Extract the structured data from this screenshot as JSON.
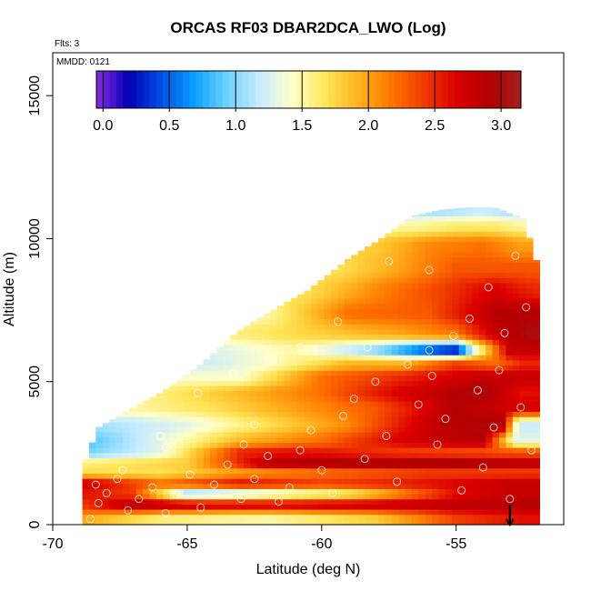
{
  "chart_data": {
    "type": "heatmap",
    "title": "ORCAS RF03 DBAR2DCA_LWO (Log)",
    "flights_label": "Flts: 3",
    "date_label": "MMDD: 0121",
    "xlabel": "Latitude (deg N)",
    "ylabel": "Altitude (m)",
    "xlim": [
      -70,
      -51
    ],
    "ylim": [
      0,
      16500
    ],
    "x_ticks": [
      -70,
      -65,
      -60,
      -55
    ],
    "x_tick_labels": [
      "-70",
      "-65",
      "-60",
      "-55"
    ],
    "y_ticks": [
      0,
      5000,
      10000,
      15000
    ],
    "y_tick_labels": [
      "0",
      "5000",
      "10000",
      "15000"
    ],
    "colorbar": {
      "range": [
        -0.05,
        3.15
      ],
      "ticks": [
        0.0,
        0.5,
        1.0,
        1.5,
        2.0,
        2.5,
        3.0
      ],
      "tick_labels": [
        "0.0",
        "0.5",
        "1.0",
        "1.5",
        "2.0",
        "2.5",
        "3.0"
      ],
      "colors": [
        "#8a2be2",
        "#0000b4",
        "#0050e6",
        "#0aa0ff",
        "#6ed2ff",
        "#c8ecff",
        "#ffffc8",
        "#ffe65a",
        "#ffb41e",
        "#ff7800",
        "#f03c00",
        "#dc0000",
        "#b40000",
        "#a02020"
      ]
    },
    "domain_edge": {
      "lat": [
        -68.9,
        -68.3,
        -67.2,
        -66.0,
        -64.5,
        -63.2,
        -62.0,
        -60.5,
        -59.0,
        -57.8,
        -56.6,
        -55.6,
        -54.6,
        -53.6,
        -52.5,
        -52.1,
        -51.8
      ],
      "top_altitude": [
        2000,
        3400,
        4000,
        4600,
        5600,
        6700,
        7400,
        8200,
        9300,
        10000,
        10800,
        11000,
        11100,
        11100,
        10700,
        9500,
        8500
      ]
    },
    "bands": [
      {
        "altitude": 250,
        "values": [
          [
            -69,
            2.0
          ],
          [
            -66,
            1.6
          ],
          [
            -62,
            1.5
          ],
          [
            -58,
            1.8
          ],
          [
            -55,
            2.4
          ],
          [
            -52.5,
            2.6
          ]
        ]
      },
      {
        "altitude": 700,
        "values": [
          [
            -69,
            2.4
          ],
          [
            -67,
            2.9
          ],
          [
            -64,
            2.7
          ],
          [
            -61,
            2.7
          ],
          [
            -57,
            2.8
          ],
          [
            -53,
            2.9
          ]
        ]
      },
      {
        "altitude": 1100,
        "values": [
          [
            -69,
            2.6
          ],
          [
            -67,
            2.4
          ],
          [
            -65,
            1.0
          ],
          [
            -62,
            1.3
          ],
          [
            -59,
            1.6
          ],
          [
            -55,
            2.6
          ],
          [
            -52.8,
            2.8
          ]
        ]
      },
      {
        "altitude": 1450,
        "values": [
          [
            -69,
            2.8
          ],
          [
            -66,
            2.2
          ],
          [
            -63,
            2.6
          ],
          [
            -60,
            2.4
          ],
          [
            -56,
            2.6
          ],
          [
            -53,
            2.8
          ]
        ]
      },
      {
        "altitude": 1850,
        "values": [
          [
            -69,
            1.7
          ],
          [
            -66,
            1.7
          ],
          [
            -63,
            2.0
          ],
          [
            -60,
            2.2
          ],
          [
            -56,
            2.4
          ],
          [
            -53,
            2.4
          ]
        ]
      },
      {
        "altitude": 2150,
        "values": [
          [
            -69,
            1.6
          ],
          [
            -65,
            1.8
          ],
          [
            -62,
            2.9
          ],
          [
            -59,
            3.0
          ],
          [
            -55,
            3.0
          ],
          [
            -52.5,
            2.9
          ]
        ]
      },
      {
        "altitude": 2550,
        "values": [
          [
            -69,
            0.9
          ],
          [
            -66,
            1.3
          ],
          [
            -63,
            2.5
          ],
          [
            -61,
            2.6
          ],
          [
            -57,
            2.4
          ],
          [
            -53,
            2.3
          ]
        ]
      },
      {
        "altitude": 2950,
        "values": [
          [
            -69,
            0.8
          ],
          [
            -66,
            1.3
          ],
          [
            -63,
            1.9
          ],
          [
            -60,
            2.2
          ],
          [
            -57,
            2.7
          ],
          [
            -54,
            2.9
          ],
          [
            -52.8,
            1.3
          ]
        ]
      },
      {
        "altitude": 3500,
        "values": [
          [
            -68,
            1.1
          ],
          [
            -65,
            1.3
          ],
          [
            -62,
            1.7
          ],
          [
            -59,
            2.1
          ],
          [
            -56,
            2.8
          ],
          [
            -53.3,
            3.0
          ],
          [
            -52.7,
            1.2
          ]
        ]
      },
      {
        "altitude": 4100,
        "values": [
          [
            -67,
            1.5
          ],
          [
            -64,
            1.7
          ],
          [
            -61,
            2.0
          ],
          [
            -58,
            2.3
          ],
          [
            -55,
            2.9
          ],
          [
            -52.8,
            2.7
          ]
        ]
      },
      {
        "altitude": 4600,
        "values": [
          [
            -66,
            1.6
          ],
          [
            -63,
            1.9
          ],
          [
            -60,
            2.2
          ],
          [
            -57,
            2.7
          ],
          [
            -54,
            3.0
          ],
          [
            -52.6,
            2.6
          ]
        ]
      },
      {
        "altitude": 5200,
        "values": [
          [
            -65,
            1.4
          ],
          [
            -63,
            1.4
          ],
          [
            -60,
            2.2
          ],
          [
            -57,
            2.5
          ],
          [
            -54,
            2.8
          ],
          [
            -52.5,
            2.8
          ]
        ]
      },
      {
        "altitude": 5650,
        "values": [
          [
            -64.5,
            1.2
          ],
          [
            -62,
            1.4
          ],
          [
            -59,
            1.9
          ],
          [
            -57,
            1.9
          ],
          [
            -55,
            2.4
          ],
          [
            -53.6,
            2.2
          ],
          [
            -52.5,
            2.5
          ]
        ]
      },
      {
        "altitude": 6100,
        "values": [
          [
            -63.5,
            1.3
          ],
          [
            -61,
            1.5
          ],
          [
            -58,
            1.0
          ],
          [
            -56,
            0.4
          ],
          [
            -55,
            0.2
          ],
          [
            -54.2,
            1.4
          ],
          [
            -53,
            2.8
          ]
        ]
      },
      {
        "altitude": 6700,
        "values": [
          [
            -63,
            1.6
          ],
          [
            -60,
            1.8
          ],
          [
            -57,
            2.0
          ],
          [
            -55,
            2.2
          ],
          [
            -53.5,
            2.8
          ],
          [
            -52.2,
            3.0
          ]
        ]
      },
      {
        "altitude": 7400,
        "values": [
          [
            -62,
            1.5
          ],
          [
            -59,
            2.2
          ],
          [
            -56,
            2.3
          ],
          [
            -53.5,
            2.9
          ],
          [
            -52.2,
            2.9
          ]
        ]
      },
      {
        "altitude": 8200,
        "values": [
          [
            -60.5,
            1.7
          ],
          [
            -58,
            2.1
          ],
          [
            -55.5,
            2.4
          ],
          [
            -53.6,
            2.7
          ],
          [
            -52.2,
            2.5
          ]
        ]
      },
      {
        "altitude": 9000,
        "values": [
          [
            -59.3,
            1.7
          ],
          [
            -57,
            2.0
          ],
          [
            -55,
            2.3
          ],
          [
            -53,
            2.3
          ]
        ]
      },
      {
        "altitude": 9800,
        "values": [
          [
            -58,
            1.8
          ],
          [
            -56,
            2.1
          ],
          [
            -54,
            2.2
          ],
          [
            -52.6,
            2.0
          ]
        ]
      },
      {
        "altitude": 10500,
        "values": [
          [
            -56.5,
            1.5
          ],
          [
            -55,
            1.6
          ],
          [
            -53.5,
            1.6
          ],
          [
            -52.6,
            1.5
          ]
        ]
      },
      {
        "altitude": 10950,
        "values": [
          [
            -55.5,
            1.1
          ],
          [
            -54,
            1.2
          ],
          [
            -53,
            1.1
          ]
        ]
      }
    ],
    "sample_points": [
      [
        -68.6,
        200
      ],
      [
        -68.3,
        750
      ],
      [
        -68.0,
        1100
      ],
      [
        -67.6,
        1600
      ],
      [
        -67.2,
        500
      ],
      [
        -66.8,
        900
      ],
      [
        -66.3,
        1300
      ],
      [
        -65.8,
        400
      ],
      [
        -65.4,
        1050
      ],
      [
        -64.9,
        1750
      ],
      [
        -64.5,
        600
      ],
      [
        -64.0,
        1400
      ],
      [
        -63.5,
        2100
      ],
      [
        -63.0,
        900
      ],
      [
        -62.5,
        1600
      ],
      [
        -62.0,
        2400
      ],
      [
        -61.6,
        800
      ],
      [
        -61.2,
        1300
      ],
      [
        -60.8,
        2600
      ],
      [
        -60.4,
        3300
      ],
      [
        -60.0,
        1900
      ],
      [
        -59.6,
        1100
      ],
      [
        -59.2,
        3800
      ],
      [
        -58.8,
        4400
      ],
      [
        -58.4,
        2300
      ],
      [
        -58.0,
        5000
      ],
      [
        -57.6,
        3100
      ],
      [
        -57.2,
        1500
      ],
      [
        -56.8,
        5600
      ],
      [
        -56.4,
        4200
      ],
      [
        -56.0,
        6100
      ],
      [
        -55.7,
        2800
      ],
      [
        -55.4,
        3700
      ],
      [
        -55.1,
        6600
      ],
      [
        -54.8,
        1200
      ],
      [
        -54.5,
        7200
      ],
      [
        -54.2,
        4700
      ],
      [
        -54.0,
        2000
      ],
      [
        -53.8,
        8300
      ],
      [
        -53.6,
        3400
      ],
      [
        -53.4,
        5400
      ],
      [
        -53.2,
        6700
      ],
      [
        -53.0,
        900
      ],
      [
        -52.8,
        9400
      ],
      [
        -52.6,
        4100
      ],
      [
        -52.4,
        7600
      ],
      [
        -52.2,
        2600
      ],
      [
        -57.5,
        9200
      ],
      [
        -56.0,
        8900
      ],
      [
        -62.5,
        3500
      ],
      [
        -60.8,
        6200
      ],
      [
        -59.4,
        7100
      ],
      [
        -65.8,
        2700
      ],
      [
        -64.6,
        4600
      ],
      [
        -63.3,
        5300
      ],
      [
        -61.8,
        5800
      ],
      [
        -67.4,
        1900
      ],
      [
        -66.0,
        3100
      ],
      [
        -68.4,
        1400
      ],
      [
        -62.9,
        2800
      ],
      [
        -58.3,
        6200
      ],
      [
        -55.9,
        5200
      ]
    ],
    "end_marker": {
      "lat": -53.0,
      "altitude": 0
    }
  }
}
